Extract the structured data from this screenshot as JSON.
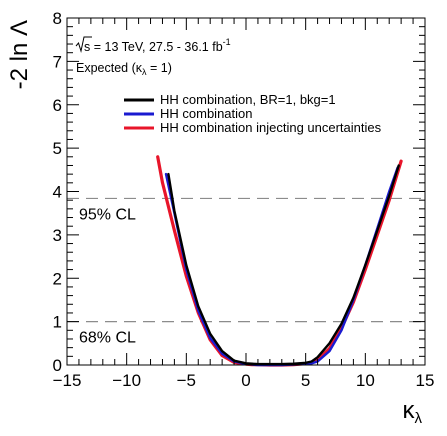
{
  "chart_data": {
    "type": "line",
    "title": "",
    "info_lines": [
      {
        "root": "s",
        "text": " = 13 TeV, 27.5 - 36.1 fb",
        "sup": "-1"
      },
      {
        "pre": "Expected (",
        "kappa": "κ",
        "sub": "λ",
        "post": " = 1)"
      }
    ],
    "xlabel": {
      "symbol": "κ",
      "sub": "λ"
    },
    "ylabel": "-2 ln Λ",
    "xlim": [
      -15,
      15
    ],
    "ylim": [
      0,
      8
    ],
    "xticks": [
      -15,
      -10,
      -5,
      0,
      5,
      10,
      15
    ],
    "xtick_labels": [
      "−15",
      "−10",
      "−5",
      "0",
      "5",
      "10",
      "15"
    ],
    "yticks": [
      0,
      1,
      2,
      3,
      4,
      5,
      6,
      7,
      8
    ],
    "ytick_labels": [
      "0",
      "1",
      "2",
      "3",
      "4",
      "5",
      "6",
      "7",
      "8"
    ],
    "grid": false,
    "legend_position": "top-right",
    "reference_lines": [
      {
        "y": 3.84,
        "label": "95% CL"
      },
      {
        "y": 1.0,
        "label": "68% CL"
      }
    ],
    "series": [
      {
        "name": "HH combination, BR=1, bkg=1",
        "color": "#000000",
        "x": [
          -6.5,
          -6.0,
          -5.0,
          -4.0,
          -3.0,
          -2.0,
          -1.0,
          0.0,
          0.5,
          1.0,
          2.0,
          3.0,
          4.0,
          5.0,
          5.5,
          6.0,
          7.0,
          8.0,
          9.0,
          10.0,
          11.0,
          12.0,
          12.8
        ],
        "y": [
          4.4,
          3.55,
          2.3,
          1.35,
          0.72,
          0.32,
          0.1,
          0.04,
          0.03,
          0.02,
          0.02,
          0.02,
          0.03,
          0.05,
          0.08,
          0.18,
          0.5,
          0.95,
          1.55,
          2.3,
          3.1,
          3.9,
          4.6
        ]
      },
      {
        "name": "HH combination",
        "color": "#1a1ad0",
        "x": [
          -6.7,
          -6.0,
          -5.0,
          -4.0,
          -3.0,
          -2.0,
          -1.0,
          0.0,
          0.5,
          1.0,
          2.0,
          3.0,
          4.0,
          5.0,
          5.5,
          6.0,
          7.0,
          8.0,
          9.0,
          10.0,
          11.0,
          12.0,
          12.7
        ],
        "y": [
          4.4,
          3.5,
          2.2,
          1.25,
          0.62,
          0.26,
          0.08,
          0.02,
          0.01,
          0.0,
          0.0,
          0.0,
          0.01,
          0.02,
          0.04,
          0.08,
          0.32,
          0.8,
          1.5,
          2.3,
          3.15,
          4.0,
          4.55
        ]
      },
      {
        "name": "HH combination injecting uncertainties",
        "color": "#e8152a",
        "x": [
          -7.4,
          -7.0,
          -6.0,
          -5.0,
          -4.0,
          -3.0,
          -2.0,
          -1.0,
          0.0,
          0.5,
          1.0,
          2.0,
          3.0,
          4.0,
          5.0,
          5.5,
          6.0,
          7.0,
          8.0,
          9.0,
          10.0,
          11.0,
          12.0,
          13.0
        ],
        "y": [
          4.8,
          4.2,
          3.1,
          2.05,
          1.2,
          0.58,
          0.22,
          0.06,
          0.02,
          0.01,
          0.01,
          0.0,
          0.0,
          0.01,
          0.03,
          0.06,
          0.12,
          0.38,
          0.85,
          1.45,
          2.2,
          3.0,
          3.8,
          4.7
        ]
      }
    ]
  }
}
